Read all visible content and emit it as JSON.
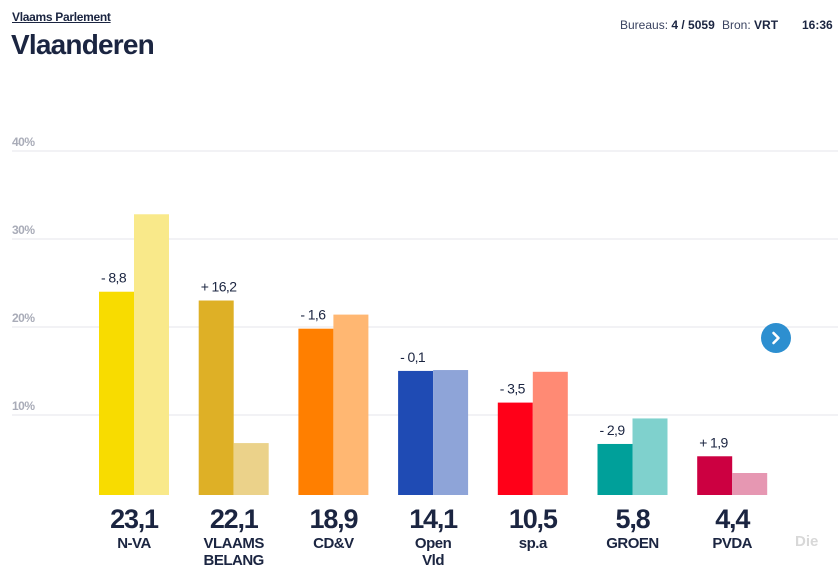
{
  "header": {
    "breadcrumb": "Vlaams Parlement",
    "title": "Vlaanderen",
    "bureaus_label": "Bureaus:",
    "bureaus_value": "4 / 5059",
    "source_label": "Bron:",
    "source_value": "VRT",
    "time": "16:36"
  },
  "navigation": {
    "next_icon": "chevron-right-icon",
    "next_button_color": "#2d8fd0"
  },
  "hidden_next_party_partial": "Die",
  "chart_data": {
    "type": "bar",
    "title": "Vlaanderen",
    "xlabel": "",
    "ylabel": "",
    "ylim": [
      0,
      40
    ],
    "yticks": [
      10,
      20,
      30,
      40
    ],
    "ytick_labels": [
      "10%",
      "20%",
      "30%",
      "40%"
    ],
    "grid": true,
    "categories": [
      "N-VA",
      "VLAAMS BELANG",
      "CD&V",
      "Open Vld",
      "sp.a",
      "GROEN",
      "PVDA"
    ],
    "category_lines": [
      [
        "N-VA"
      ],
      [
        "VLAAMS",
        "BELANG"
      ],
      [
        "CD&V"
      ],
      [
        "Open",
        "Vld"
      ],
      [
        "sp.a"
      ],
      [
        "GROEN"
      ],
      [
        "PVDA"
      ]
    ],
    "series": [
      {
        "name": "current",
        "values": [
          23.1,
          22.1,
          18.9,
          14.1,
          10.5,
          5.8,
          4.4
        ]
      },
      {
        "name": "previous",
        "values": [
          31.9,
          5.9,
          20.5,
          14.2,
          14.0,
          8.7,
          2.5
        ]
      }
    ],
    "value_labels": [
      "23,1",
      "22,1",
      "18,9",
      "14,1",
      "10,5",
      "5,8",
      "4,4"
    ],
    "change_labels": [
      "- 8,8",
      "+ 16,2",
      "- 1,6",
      "- 0,1",
      "- 3,5",
      "- 2,9",
      "+ 1,9"
    ],
    "colors_current": [
      "#f8dc00",
      "#deb026",
      "#ff7f00",
      "#1f4bb4",
      "#ff0018",
      "#00a09a",
      "#cc0041"
    ],
    "colors_previous": [
      "#f9e98a",
      "#ebd28a",
      "#ffb772",
      "#8ea4d8",
      "#ff8a74",
      "#7fd1cd",
      "#e697b2"
    ]
  }
}
